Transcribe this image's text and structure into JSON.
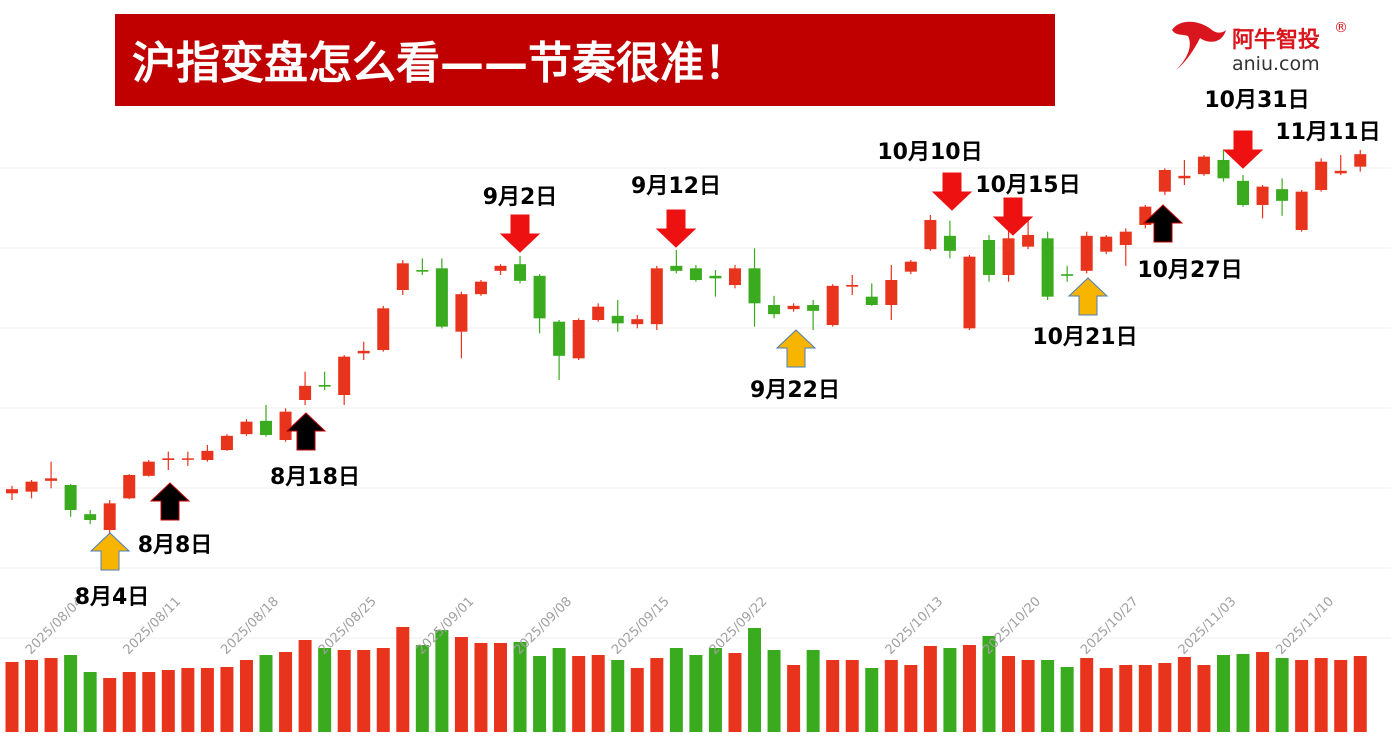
{
  "chart_data": {
    "type": "candlestick",
    "title": "沪指变盘怎么看——节奏很准！",
    "categories": [
      null,
      null,
      null,
      null,
      null,
      "2025/08/04",
      null,
      null,
      null,
      null,
      "2025/08/11",
      null,
      null,
      null,
      null,
      "2025/08/18",
      null,
      null,
      null,
      null,
      "2025/08/25",
      null,
      null,
      null,
      null,
      "2025/09/01",
      null,
      null,
      null,
      null,
      "2025/09/08",
      null,
      null,
      null,
      null,
      "2025/09/15",
      null,
      null,
      null,
      null,
      "2025/09/22",
      null,
      null,
      null,
      null,
      null,
      null,
      null,
      null,
      "2025/10/13",
      null,
      null,
      null,
      null,
      "2025/10/20",
      null,
      null,
      null,
      null,
      "2025/10/27",
      null,
      null,
      null,
      null,
      "2025/11/03",
      null,
      null,
      null,
      null,
      "2025/11/10"
    ],
    "open": [
      3588,
      3590,
      3603,
      3598,
      3563,
      3544,
      3582,
      3609,
      3628,
      3629,
      3628,
      3640,
      3659,
      3675,
      3652,
      3700,
      3718,
      3706,
      3756,
      3760,
      3832,
      3856,
      3858,
      3782,
      3827,
      3855,
      3863,
      3849,
      3794,
      3750,
      3796,
      3801,
      3791,
      3791,
      3861,
      3858,
      3849,
      3838,
      3858,
      3814,
      3809,
      3814,
      3790,
      3836,
      3824,
      3814,
      3854,
      3881,
      3897,
      3786,
      3892,
      3850,
      3884,
      3894,
      3851,
      3855,
      3878,
      3886,
      3910,
      3950,
      3966,
      3971,
      3988,
      3963,
      3934,
      3953,
      3904,
      3952,
      3972,
      3980
    ],
    "high": [
      3597,
      3604,
      3626,
      3599,
      3568,
      3580,
      3611,
      3628,
      3638,
      3638,
      3646,
      3659,
      3677,
      3694,
      3690,
      3734,
      3734,
      3754,
      3770,
      3813,
      3868,
      3870,
      3870,
      3830,
      3844,
      3863,
      3873,
      3851,
      3796,
      3798,
      3816,
      3820,
      3802,
      3861,
      3880,
      3862,
      3856,
      3862,
      3882,
      3825,
      3816,
      3820,
      3839,
      3850,
      3840,
      3862,
      3868,
      3922,
      3915,
      3874,
      3898,
      3916,
      3916,
      3902,
      3861,
      3902,
      3898,
      3906,
      3934,
      3978,
      3988,
      3994,
      4000,
      3970,
      3958,
      3966,
      3952,
      3990,
      3994,
      4000
    ],
    "low": [
      3580,
      3582,
      3594,
      3560,
      3551,
      3540,
      3581,
      3608,
      3616,
      3621,
      3626,
      3639,
      3657,
      3656,
      3650,
      3694,
      3712,
      3694,
      3748,
      3758,
      3826,
      3850,
      3786,
      3750,
      3825,
      3850,
      3840,
      3780,
      3724,
      3748,
      3794,
      3782,
      3786,
      3784,
      3852,
      3842,
      3824,
      3834,
      3788,
      3798,
      3806,
      3784,
      3788,
      3826,
      3813,
      3796,
      3851,
      3879,
      3870,
      3784,
      3842,
      3842,
      3881,
      3820,
      3842,
      3852,
      3875,
      3861,
      3906,
      3946,
      3958,
      3969,
      3962,
      3932,
      3918,
      3921,
      3902,
      3950,
      3970,
      3974
    ],
    "close": [
      3593,
      3602,
      3606,
      3568,
      3556,
      3576,
      3610,
      3626,
      3630,
      3630,
      3639,
      3657,
      3674,
      3658,
      3686,
      3717,
      3716,
      3752,
      3759,
      3810,
      3864,
      3854,
      3788,
      3827,
      3842,
      3861,
      3843,
      3798,
      3753,
      3796,
      3812,
      3792,
      3797,
      3858,
      3855,
      3844,
      3846,
      3858,
      3816,
      3803,
      3813,
      3807,
      3837,
      3838,
      3814,
      3844,
      3866,
      3916,
      3879,
      3872,
      3850,
      3894,
      3898,
      3824,
      3849,
      3897,
      3896,
      3902,
      3932,
      3976,
      3969,
      3992,
      3966,
      3934,
      3956,
      3939,
      3950,
      3986,
      3975,
      3995
    ],
    "volume": [
      7000,
      7200,
      7400,
      7700,
      6000,
      5400,
      6000,
      6000,
      6200,
      6400,
      6400,
      6500,
      7200,
      7700,
      8000,
      9200,
      8400,
      8200,
      8200,
      8400,
      10500,
      8700,
      10200,
      9500,
      8900,
      8900,
      9000,
      7600,
      8400,
      7600,
      7700,
      7200,
      6400,
      7400,
      8400,
      7700,
      8400,
      7900,
      10400,
      8200,
      6700,
      8200,
      7200,
      7200,
      6400,
      7200,
      6700,
      8600,
      8400,
      8700,
      9600,
      7600,
      7200,
      7200,
      6500,
      7400,
      6400,
      6700,
      6700,
      6900,
      7500,
      6700,
      7700,
      7800,
      8000,
      7400,
      7200,
      7400,
      7200,
      7600
    ],
    "up_color": "#e8341c",
    "down_color": "#3aab1e",
    "ylim": [
      3500,
      4050
    ],
    "vlim": [
      0,
      12000
    ],
    "annotations": [
      {
        "text": "8月4日",
        "arrow": "up",
        "color": "#f7b500"
      },
      {
        "text": "8月8日",
        "arrow": "up",
        "color": "#000000"
      },
      {
        "text": "8月18日",
        "arrow": "up",
        "color": "#000000"
      },
      {
        "text": "9月2日",
        "arrow": "down",
        "color": "#ee1111"
      },
      {
        "text": "9月12日",
        "arrow": "down",
        "color": "#ee1111"
      },
      {
        "text": "9月22日",
        "arrow": "up",
        "color": "#f7b500"
      },
      {
        "text": "10月10日",
        "arrow": "down",
        "color": "#ee1111"
      },
      {
        "text": "10月15日",
        "arrow": "down",
        "color": "#ee1111"
      },
      {
        "text": "10月21日",
        "arrow": "up",
        "color": "#f7b500"
      },
      {
        "text": "10月27日",
        "arrow": "up",
        "color": "#000000"
      },
      {
        "text": "10月31日",
        "arrow": "down",
        "color": "#ee1111"
      },
      {
        "text": "11月11日"
      }
    ]
  },
  "logo": {
    "name": "阿牛智投",
    "mark": "®",
    "url": "aniu.com"
  }
}
